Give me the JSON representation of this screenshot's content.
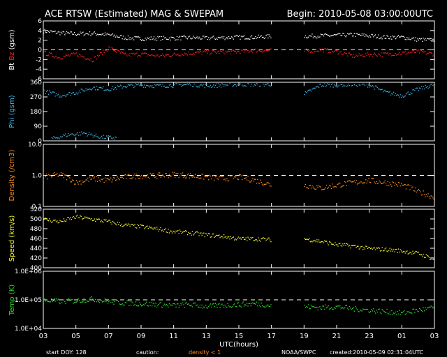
{
  "header": {
    "title": "ACE RTSW (Estimated) MAG & SWEPAM",
    "begin": "Begin: 2010-05-08 03:00:00UTC"
  },
  "footer": {
    "start_doy": "start DOY: 128",
    "caution": "caution:",
    "caution_note": "density < 1",
    "agency": "NOAA/SWPC",
    "created": "created:2010-05-09 02:31:04UTC"
  },
  "colors": {
    "bt": "#ffffff",
    "bz": "#ff2020",
    "phi": "#3fb8e8",
    "density": "#ff9020",
    "speed": "#ffff30",
    "temp": "#30e030",
    "axes": "#ffffff"
  },
  "chart_data": {
    "type": "scatter",
    "x_axis": {
      "label": "UTC(hours)",
      "range_hours": [
        0,
        24
      ],
      "tick_labels": [
        "03",
        "05",
        "07",
        "09",
        "11",
        "13",
        "15",
        "17",
        "19",
        "21",
        "23",
        "01",
        "03"
      ],
      "data_gap_hours": [
        14.3,
        15.9
      ]
    },
    "panels": [
      {
        "id": "mag",
        "ylabel_parts": [
          "Bt",
          "Bz",
          "(gsm)"
        ],
        "ylim": [
          -6,
          6
        ],
        "yticks": [
          "6",
          "4",
          "2",
          "0",
          "-2",
          "-4",
          "-6"
        ],
        "ytick_values": [
          6,
          4,
          2,
          0,
          -2,
          -4,
          -6
        ],
        "ref_line": 0,
        "series": [
          {
            "name": "Bt",
            "x": [
              0,
              1,
              2,
              3,
              4,
              5,
              6,
              7,
              8,
              9,
              10,
              11,
              12,
              13,
              14,
              16,
              17,
              18,
              19,
              20,
              21,
              22,
              23,
              24
            ],
            "y": [
              4.0,
              3.6,
              3.4,
              3.5,
              3.2,
              2.6,
              2.4,
              2.5,
              2.5,
              2.6,
              2.5,
              2.6,
              2.7,
              2.7,
              2.9,
              2.9,
              3.0,
              3.1,
              3.2,
              3.0,
              2.7,
              2.7,
              2.2,
              2.1
            ]
          },
          {
            "name": "Bz",
            "x": [
              0,
              1,
              2,
              3,
              4,
              5,
              6,
              7,
              8,
              9,
              10,
              11,
              12,
              13,
              14,
              16,
              17,
              18,
              19,
              20,
              21,
              22,
              23,
              24
            ],
            "y": [
              -0.5,
              -1.5,
              -0.8,
              -2.0,
              0.5,
              -1.0,
              -0.8,
              -1.2,
              -0.9,
              -0.6,
              -0.4,
              -0.4,
              -0.3,
              0.0,
              -0.1,
              -0.2,
              0.1,
              -0.3,
              -1.2,
              -0.9,
              -0.8,
              -0.6,
              -0.3,
              -0.8
            ]
          }
        ]
      },
      {
        "id": "phi",
        "ylabel_parts": [
          "Phi (gsm)"
        ],
        "ylim": [
          0,
          360
        ],
        "yticks": [
          "360",
          "270",
          "180",
          "90",
          "0"
        ],
        "ytick_values": [
          360,
          270,
          180,
          90,
          0
        ],
        "series": [
          {
            "name": "Phi",
            "x": [
              0,
              1,
              2,
              3,
              4,
              5,
              6,
              7,
              8,
              9,
              10,
              11,
              12,
              13,
              14,
              16,
              17,
              18,
              19,
              20,
              21,
              22,
              23,
              24
            ],
            "y": [
              310,
              280,
              300,
              330,
              320,
              340,
              345,
              340,
              345,
              350,
              340,
              345,
              350,
              348,
              350,
              290,
              345,
              345,
              350,
              345,
              300,
              280,
              320,
              350
            ]
          },
          {
            "name": "Phi",
            "x": [
              0.5,
              1.5,
              2.5,
              3.5,
              4.5
            ],
            "y": [
              15,
              40,
              50,
              25,
              20
            ]
          }
        ]
      },
      {
        "id": "density",
        "ylabel_parts": [
          "Density (/cm3)"
        ],
        "ylim": [
          0.1,
          10
        ],
        "log": true,
        "yticks": [
          "10.0",
          "1.0",
          "0.1"
        ],
        "ytick_values": [
          10,
          1,
          0.1
        ],
        "ref_line": 1,
        "series": [
          {
            "name": "Density",
            "x": [
              0,
              1,
              2,
              3,
              4,
              5,
              6,
              7,
              8,
              9,
              10,
              11,
              12,
              13,
              14,
              16,
              17,
              18,
              19,
              20,
              21,
              22,
              23,
              24
            ],
            "y": [
              0.9,
              1.1,
              0.6,
              0.8,
              0.7,
              0.9,
              1.0,
              1.0,
              1.1,
              1.0,
              0.9,
              0.8,
              0.9,
              0.7,
              0.5,
              0.5,
              0.4,
              0.5,
              0.6,
              0.7,
              0.6,
              0.5,
              0.3,
              0.2
            ]
          }
        ]
      },
      {
        "id": "speed",
        "ylabel_parts": [
          "Speed (km/s)"
        ],
        "ylim": [
          400,
          520
        ],
        "yticks": [
          "520",
          "500",
          "480",
          "460",
          "440",
          "420",
          "400"
        ],
        "ytick_values": [
          520,
          500,
          480,
          460,
          440,
          420,
          400
        ],
        "series": [
          {
            "name": "Speed",
            "x": [
              0,
              1,
              2,
              3,
              4,
              5,
              6,
              7,
              8,
              9,
              10,
              11,
              12,
              13,
              14,
              16,
              17,
              18,
              19,
              20,
              21,
              22,
              23,
              24
            ],
            "y": [
              500,
              495,
              505,
              500,
              495,
              488,
              485,
              480,
              475,
              472,
              468,
              465,
              460,
              460,
              458,
              460,
              455,
              448,
              445,
              440,
              438,
              435,
              430,
              418
            ]
          }
        ]
      },
      {
        "id": "temp",
        "ylabel_parts": [
          "Temp (K)"
        ],
        "ylim": [
          10000,
          1000000
        ],
        "log": true,
        "yticks": [
          "1.0E+06",
          "1.0E+05",
          "1.0E+04"
        ],
        "ytick_values": [
          1000000,
          100000,
          10000
        ],
        "ref_line": 100000,
        "series": [
          {
            "name": "Temp",
            "x": [
              0,
              1,
              2,
              3,
              4,
              5,
              6,
              7,
              8,
              9,
              10,
              11,
              12,
              13,
              14,
              16,
              17,
              18,
              19,
              20,
              21,
              22,
              23,
              24
            ],
            "y": [
              100000,
              90000,
              95000,
              110000,
              90000,
              80000,
              75000,
              70000,
              65000,
              70000,
              60000,
              65000,
              70000,
              75000,
              65000,
              60000,
              55000,
              60000,
              50000,
              45000,
              40000,
              35000,
              45000,
              55000
            ]
          }
        ]
      }
    ]
  }
}
